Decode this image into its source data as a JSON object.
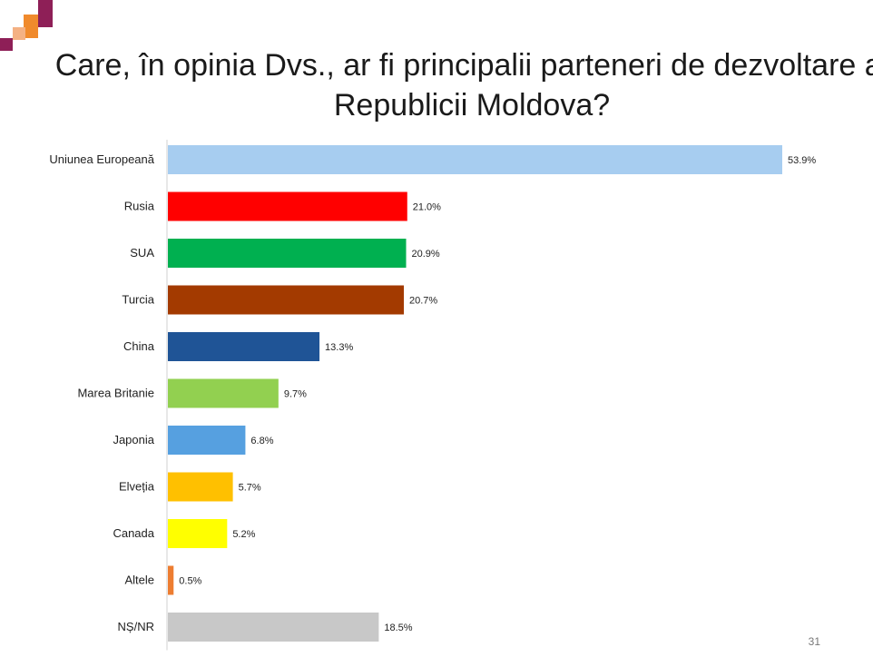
{
  "slide": {
    "title": "Care, în opinia Dvs., ar fi principalii parteneri de dezvoltare ai Republicii Moldova?",
    "page_number": "31"
  },
  "logo": {
    "colors": [
      "#8e1f57",
      "#f08a2c",
      "#f4b183"
    ]
  },
  "chart_data": {
    "type": "bar",
    "orientation": "horizontal",
    "title": "Care, în opinia Dvs., ar fi principalii parteneri de dezvoltare ai Republicii Moldova?",
    "categories": [
      "Uniunea Europeană",
      "Rusia",
      "SUA",
      "Turcia",
      "China",
      "Marea Britanie",
      "Japonia",
      "Elveția",
      "Canada",
      "Altele",
      "NȘ/NR"
    ],
    "values": [
      53.9,
      21.0,
      20.9,
      20.7,
      13.3,
      9.7,
      6.8,
      5.7,
      5.2,
      0.5,
      18.5
    ],
    "value_labels": [
      "53.9%",
      "21.0%",
      "20.9%",
      "20.7%",
      "13.3%",
      "9.7%",
      "6.8%",
      "5.7%",
      "5.2%",
      "0.5%",
      "18.5%"
    ],
    "colors": [
      "#a7cdf0",
      "#ff0000",
      "#00b050",
      "#a33a00",
      "#1f5496",
      "#92d050",
      "#56a0e0",
      "#ffc000",
      "#ffff00",
      "#ed7d31",
      "#c8c8c8"
    ],
    "xlim": [
      0,
      53.9
    ],
    "grid": false,
    "legend": "none"
  }
}
